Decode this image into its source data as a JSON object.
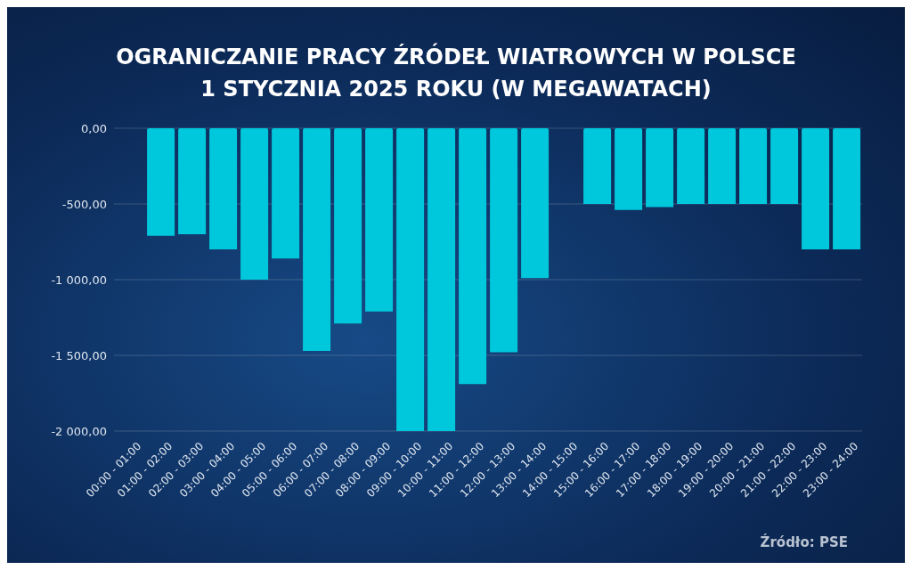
{
  "chart_data": {
    "type": "bar",
    "title": "OGRANICZANIE PRACY ŹRÓDEŁ WIATROWYCH W POLSCE\n1 STYCZNIA 2025 ROKU (W MEGAWATACH)",
    "categories": [
      "00:00 - 01:00",
      "01:00 - 02:00",
      "02:00 - 03:00",
      "03:00 - 04:00",
      "04:00 - 05:00",
      "05:00 - 06:00",
      "06:00 - 07:00",
      "07:00 - 08:00",
      "08:00 - 09:00",
      "09:00 - 10:00",
      "10:00 - 11:00",
      "11:00 - 12:00",
      "12:00 - 13:00",
      "13:00 - 14:00",
      "14:00 - 15:00",
      "15:00 - 16:00",
      "16:00 - 17:00",
      "17:00 - 18:00",
      "18:00 - 19:00",
      "19:00 - 20:00",
      "20:00 - 21:00",
      "21:00 - 22:00",
      "22:00 - 23:00",
      "23:00 - 24:00"
    ],
    "values": [
      0,
      -710,
      -700,
      -800,
      -1000,
      -860,
      -1470,
      -1290,
      -1210,
      -2000,
      -2000,
      -1690,
      -1480,
      -990,
      0,
      -500,
      -540,
      -520,
      -500,
      -500,
      -500,
      -500,
      -800,
      -800
    ],
    "color": "#00c8dc",
    "ylim": [
      -2000,
      0
    ],
    "yticks": [
      {
        "value": 0,
        "label": "0,00"
      },
      {
        "value": -500,
        "label": "-500,00"
      },
      {
        "value": -1000,
        "label": "-1 000,00"
      },
      {
        "value": -1500,
        "label": "-1 500,00"
      },
      {
        "value": -2000,
        "label": "-2 000,00"
      }
    ],
    "grid": "y",
    "legend": false,
    "annotations": [
      "Źródło: PSE"
    ]
  }
}
